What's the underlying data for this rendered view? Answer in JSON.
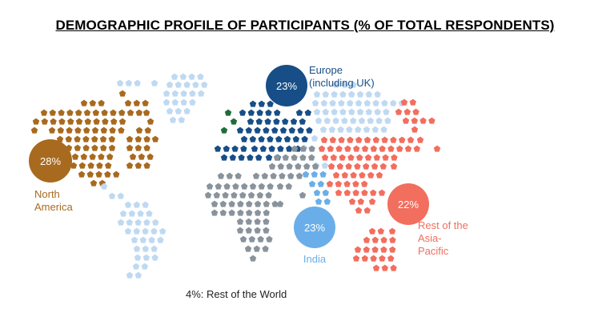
{
  "title": "DEMOGRAPHIC PROFILE OF PARTICIPANTS (% OF TOTAL RESPONDENTS)",
  "footnote": "4%: Rest of the World",
  "colors": {
    "north_america": "#a86a1f",
    "europe": "#184e87",
    "india": "#6aaee9",
    "asia_pacific": "#f26e5e",
    "rest_of_world": "#8a939c",
    "light_blue": "#bfd9f2",
    "green": "#1e6e3a"
  },
  "chart_data": {
    "type": "pie",
    "title": "DEMOGRAPHIC PROFILE OF PARTICIPANTS (% OF TOTAL RESPONDENTS)",
    "series": [
      {
        "key": "north_america",
        "label_lines": [
          "North",
          "America"
        ],
        "value": 28,
        "display": "28%"
      },
      {
        "key": "europe",
        "label_lines": [
          "Europe",
          "(including UK)"
        ],
        "value": 23,
        "display": "23%"
      },
      {
        "key": "india",
        "label_lines": [
          "India"
        ],
        "value": 23,
        "display": "23%"
      },
      {
        "key": "asia_pacific",
        "label_lines": [
          "Rest of the",
          "Asia-",
          "Pacific"
        ],
        "value": 22,
        "display": "22%"
      },
      {
        "key": "rest_of_world",
        "label_lines": [
          "4%: Rest of the World"
        ],
        "value": 4,
        "display": "4%"
      }
    ]
  }
}
